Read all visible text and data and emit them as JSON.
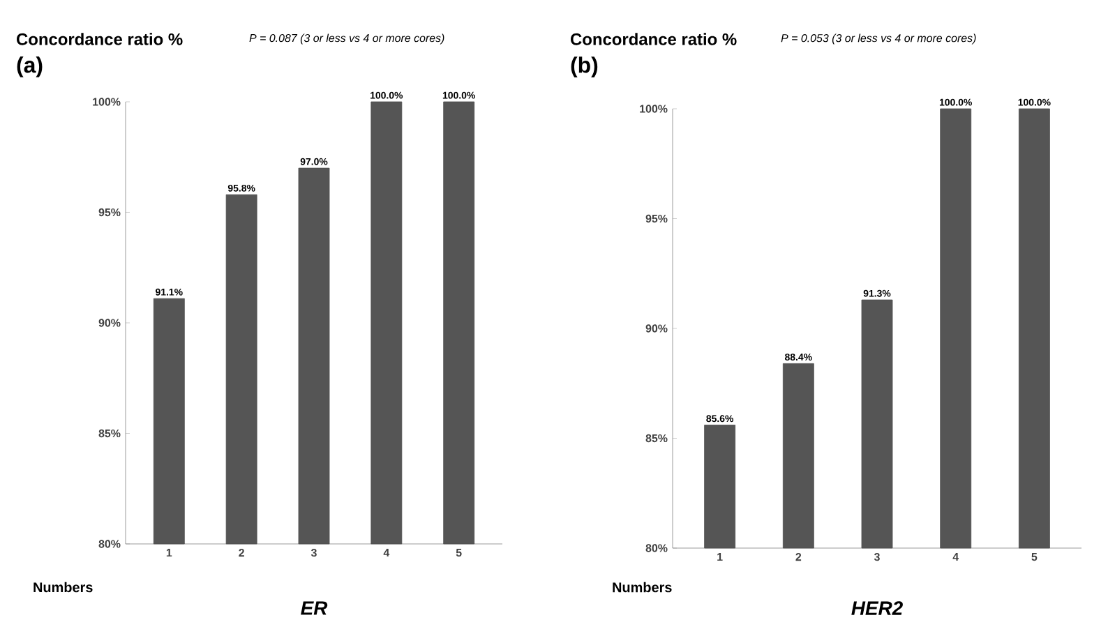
{
  "chart_data": [
    {
      "type": "bar",
      "title": "ER",
      "subtitle": "P = 0.087 (3 or less vs 4 or more cores)",
      "ylabel": "Concordance ratio %",
      "xlabel": "Numbers",
      "annotations": [
        "(a)"
      ],
      "categories": [
        "1",
        "2",
        "3",
        "4",
        "5"
      ],
      "values": [
        91.1,
        95.8,
        97.0,
        100.0,
        100.0
      ],
      "value_labels": [
        "91.1%",
        "95.8%",
        "97.0%",
        "100.0%",
        "100.0%"
      ],
      "color": "#555555",
      "ylim": [
        80,
        100
      ],
      "yticks": [
        {
          "value": 80,
          "label": "80%"
        },
        {
          "value": 85,
          "label": "85%"
        },
        {
          "value": 90,
          "label": "90%"
        },
        {
          "value": 95,
          "label": "95%"
        },
        {
          "value": 100,
          "label": "100%"
        }
      ]
    },
    {
      "type": "bar",
      "title": "HER2",
      "subtitle": "P = 0.053 (3 or less vs 4 or more cores)",
      "ylabel": "Concordance ratio %",
      "xlabel": "Numbers",
      "annotations": [
        "(b)"
      ],
      "categories": [
        "1",
        "2",
        "3",
        "4",
        "5"
      ],
      "values": [
        85.6,
        88.4,
        91.3,
        100.0,
        100.0
      ],
      "value_labels": [
        "85.6%",
        "88.4%",
        "91.3%",
        "100.0%",
        "100.0%"
      ],
      "color": "#555555",
      "ylim": [
        80,
        100
      ],
      "yticks": [
        {
          "value": 80,
          "label": "80%"
        },
        {
          "value": 85,
          "label": "85%"
        },
        {
          "value": 90,
          "label": "90%"
        },
        {
          "value": 95,
          "label": "95%"
        },
        {
          "value": 100,
          "label": "100%"
        }
      ]
    }
  ]
}
